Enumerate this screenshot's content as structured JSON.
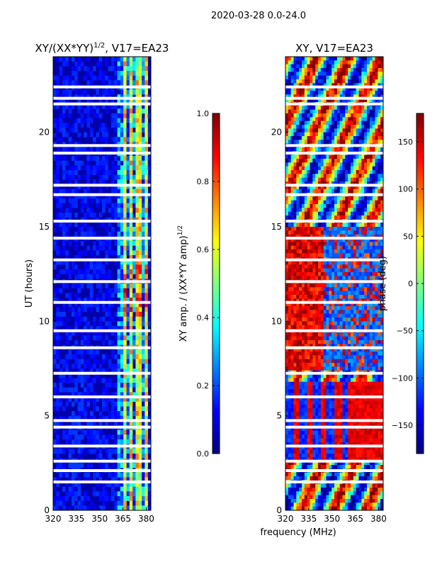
{
  "suptitle": "2020-03-28 0.0-24.0",
  "colors": {
    "jet": [
      "#000080",
      "#0000ff",
      "#0080ff",
      "#00ffff",
      "#80ff80",
      "#ffff00",
      "#ff8000",
      "#ff0000",
      "#800000"
    ],
    "gap": "#ffffff",
    "axis": "#000000"
  },
  "chart_data": [
    {
      "type": "heatmap",
      "title_main": "XY/(XX*YY)",
      "title_exp": "1/2",
      "title_rest": ", V17=EA23",
      "xlabel": "",
      "ylabel": "UT (hours)",
      "xlim": [
        320,
        383
      ],
      "ylim": [
        0,
        24
      ],
      "xticks": [
        320,
        335,
        350,
        365,
        380
      ],
      "xtick_labels": [
        "320",
        "335",
        "350",
        "365",
        "380"
      ],
      "yticks": [
        0,
        5,
        10,
        15,
        20
      ],
      "ytick_labels": [
        "0",
        "5",
        "10",
        "15",
        "20"
      ],
      "colorbar": {
        "label_main": "XY amp. / (XX*YY amp)",
        "label_exp": "1/2",
        "range": [
          0.0,
          1.0
        ],
        "ticks": [
          0.0,
          0.2,
          0.4,
          0.6,
          0.8,
          1.0
        ],
        "tick_labels": [
          "0.0",
          "0.2",
          "0.4",
          "0.6",
          "0.8",
          "1.0"
        ]
      },
      "bright_band_mhz": [
        362,
        381
      ],
      "bright_channel_centers_mhz": [
        366,
        370.5,
        375,
        380
      ],
      "missing_ut_hours": [
        1.5,
        2.1,
        2.6,
        3.4,
        4.4,
        4.75,
        6.0,
        7.25,
        8.6,
        9.5,
        11.0,
        12.1,
        13.25,
        14.4,
        15.3,
        16.7,
        17.2,
        18.9,
        19.3,
        21.5,
        21.8,
        22.4
      ]
    },
    {
      "type": "heatmap",
      "title_main": "XY, V17=EA23",
      "xlabel": "frequency (MHz)",
      "ylabel": "",
      "xlim": [
        320,
        383
      ],
      "ylim": [
        0,
        24
      ],
      "xticks": [
        320,
        335,
        350,
        365,
        380
      ],
      "xtick_labels": [
        "320",
        "335",
        "350",
        "365",
        "380"
      ],
      "yticks": [
        0,
        5,
        10,
        15,
        20
      ],
      "ytick_labels": [
        "0",
        "5",
        "10",
        "15",
        "20"
      ],
      "colorbar": {
        "label_main": "phase (deg)",
        "range": [
          -180,
          180
        ],
        "ticks": [
          -150,
          -100,
          -50,
          0,
          50,
          100,
          150
        ],
        "tick_labels": [
          "−150",
          "−100",
          "−50",
          "0",
          "50",
          "100",
          "150"
        ]
      },
      "missing_ut_hours": [
        1.5,
        2.1,
        2.6,
        3.4,
        4.4,
        4.75,
        6.0,
        7.25,
        8.6,
        9.5,
        11.0,
        12.1,
        13.25,
        14.4,
        15.3,
        16.7,
        17.2,
        18.9,
        19.3,
        21.5,
        21.8,
        22.4
      ]
    }
  ]
}
